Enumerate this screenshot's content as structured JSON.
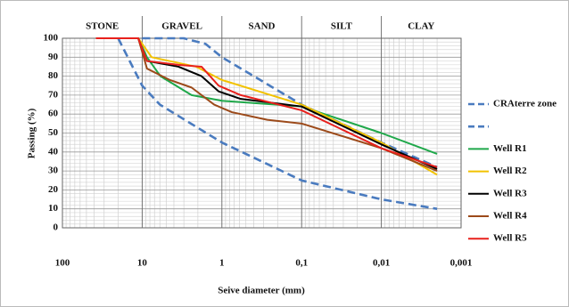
{
  "chart_data": {
    "type": "line",
    "regions": [
      {
        "label": "STONE",
        "from": 100,
        "to": 10
      },
      {
        "label": "GRAVEL",
        "from": 10,
        "to": 1
      },
      {
        "label": "SAND",
        "from": 1,
        "to": 0.1
      },
      {
        "label": "SILT",
        "from": 0.1,
        "to": 0.01
      },
      {
        "label": "CLAY",
        "from": 0.01,
        "to": 0.001
      }
    ],
    "x_label": "Seive diameter  (mm)",
    "y_label": "Passing (%)",
    "x_log": true,
    "xlim": [
      100,
      0.001
    ],
    "xticks": [
      100,
      10,
      1,
      {
        "value": 0.1,
        "label": "0,1"
      },
      {
        "value": 0.01,
        "label": "0,01"
      },
      {
        "value": 0.001,
        "label": "0,001"
      }
    ],
    "ylim": [
      0,
      100
    ],
    "yticks": [
      0,
      10,
      20,
      30,
      40,
      50,
      60,
      70,
      80,
      90,
      100
    ],
    "grid": true,
    "legend": "right",
    "series": [
      {
        "name": "CRAterre zone",
        "color": "#4a7bbf",
        "dashed": true,
        "x": [
          10,
          3,
          1.6,
          1,
          0.1,
          0.01,
          0.002
        ],
        "values": [
          100,
          100,
          97,
          90,
          65,
          45,
          32
        ]
      },
      {
        "name": null,
        "color": "#4a7bbf",
        "dashed": true,
        "x": [
          20,
          10,
          6,
          1,
          0.1,
          0.01,
          0.002
        ],
        "values": [
          100,
          75,
          65,
          45,
          25,
          15,
          10
        ]
      },
      {
        "name": "Well R1",
        "color": "#1fa84a",
        "x": [
          38,
          11.2,
          8.7,
          5.9,
          2.4,
          1,
          0.1,
          0.01,
          0.002
        ],
        "values": [
          100,
          100,
          90,
          80,
          70,
          67,
          64,
          50,
          39
        ]
      },
      {
        "name": "Well R2",
        "color": "#f2c200",
        "x": [
          38,
          11.2,
          7.6,
          2.1,
          1,
          0.1,
          0.01,
          0.002
        ],
        "values": [
          100,
          100,
          90,
          85,
          78,
          65,
          45,
          28
        ]
      },
      {
        "name": "Well R3",
        "color": "#000000",
        "x": [
          38,
          11.2,
          8.7,
          3.5,
          1.8,
          1.1,
          0.58,
          0.1,
          0.01,
          0.002
        ],
        "values": [
          100,
          100,
          88,
          85,
          80,
          72,
          68,
          64,
          44,
          31
        ]
      },
      {
        "name": "Well R4",
        "color": "#9c4a1a",
        "x": [
          38,
          11.2,
          8.7,
          4.5,
          2.4,
          1.25,
          0.75,
          0.27,
          0.1,
          0.01,
          0.002
        ],
        "values": [
          100,
          100,
          84,
          78,
          74,
          65,
          61,
          57,
          55,
          42,
          30
        ]
      },
      {
        "name": "Well R5",
        "color": "#e8201c",
        "x": [
          38,
          11.2,
          8.7,
          3.5,
          1.8,
          1.1,
          0.58,
          0.1,
          0.01,
          0.002
        ],
        "values": [
          100,
          100,
          88,
          86,
          85,
          75,
          70,
          62,
          42,
          32
        ]
      }
    ]
  }
}
